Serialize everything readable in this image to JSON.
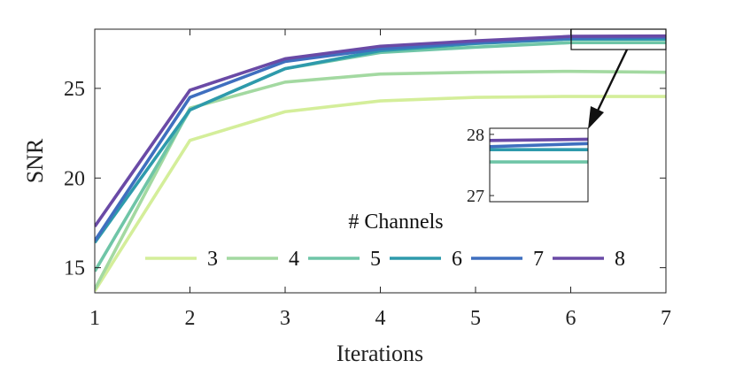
{
  "chart_data": {
    "type": "line",
    "xlabel": "Iterations",
    "ylabel": "SNR",
    "x": [
      1,
      2,
      3,
      4,
      5,
      6,
      7
    ],
    "xlim": [
      1,
      7
    ],
    "ylim": [
      13.6,
      28.3
    ],
    "xticks": [
      "1",
      "2",
      "3",
      "4",
      "5",
      "6",
      "7"
    ],
    "yticks": [
      "15",
      "20",
      "25"
    ],
    "grid": false,
    "legend": {
      "title": "# Channels",
      "placement": "bottom-center",
      "orientation": "horizontal"
    },
    "series": [
      {
        "name": "3",
        "color": "#d4ee9a",
        "values": [
          13.7,
          22.1,
          23.7,
          24.3,
          24.5,
          24.55,
          24.55
        ]
      },
      {
        "name": "4",
        "color": "#a3d9a1",
        "values": [
          13.8,
          23.9,
          25.35,
          25.8,
          25.9,
          25.95,
          25.9
        ]
      },
      {
        "name": "5",
        "color": "#6fc5a7",
        "values": [
          14.8,
          23.8,
          26.1,
          27.0,
          27.3,
          27.55,
          27.55
        ]
      },
      {
        "name": "6",
        "color": "#2e9aac",
        "values": [
          16.4,
          23.8,
          26.1,
          27.1,
          27.5,
          27.75,
          27.75
        ]
      },
      {
        "name": "7",
        "color": "#3f6fbf",
        "values": [
          16.5,
          24.5,
          26.5,
          27.2,
          27.55,
          27.8,
          27.85
        ]
      },
      {
        "name": "8",
        "color": "#6a4aa6",
        "values": [
          17.3,
          24.9,
          26.65,
          27.35,
          27.65,
          27.9,
          27.92
        ]
      }
    ],
    "inset": {
      "x_range": [
        6,
        7
      ],
      "ylim": [
        26.9,
        28.1
      ],
      "yticks": [
        "27",
        "28"
      ]
    }
  }
}
